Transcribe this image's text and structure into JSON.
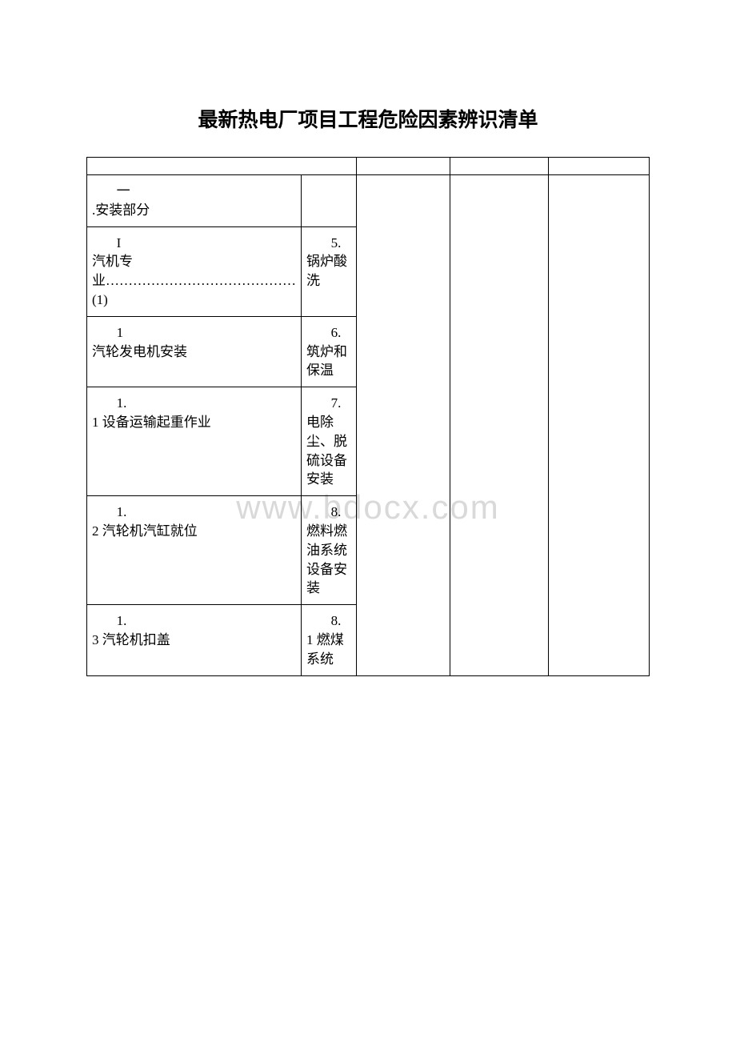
{
  "title": "最新热电厂项目工程危险因素辨识清单",
  "watermark": "www.bdocx.com",
  "table": {
    "columns": {
      "col1_width": 75,
      "col2_width": 76,
      "col3_width": 176,
      "col4_width": 186,
      "col5_width": 190
    },
    "border_color": "#000000",
    "text_color": "#000000",
    "background_color": "#ffffff",
    "font_size": 17,
    "rows": [
      {
        "col1_num": "一",
        "col1_text": ".安装部分",
        "col2": ""
      },
      {
        "col1_num": "I",
        "col1_text": "汽机专业……………………………………(1)",
        "col2_num": "5.",
        "col2_text": "锅炉酸洗"
      },
      {
        "col1_num": "1",
        "col1_text": "汽轮发电机安装",
        "col2_num": "6.",
        "col2_text": "筑炉和保温"
      },
      {
        "col1_num": "1.",
        "col1_text": "1 设备运输起重作业",
        "col2_num": "7.",
        "col2_text": "电除尘、脱硫设备安装"
      },
      {
        "col1_num": "1.",
        "col1_text": "2 汽轮机汽缸就位",
        "col2_num": "8.",
        "col2_text": "燃料燃油系统设备安装"
      },
      {
        "col1_num": "1.",
        "col1_text": "3 汽轮机扣盖",
        "col2_num": "8.",
        "col2_text": "1 燃煤系统"
      }
    ]
  }
}
